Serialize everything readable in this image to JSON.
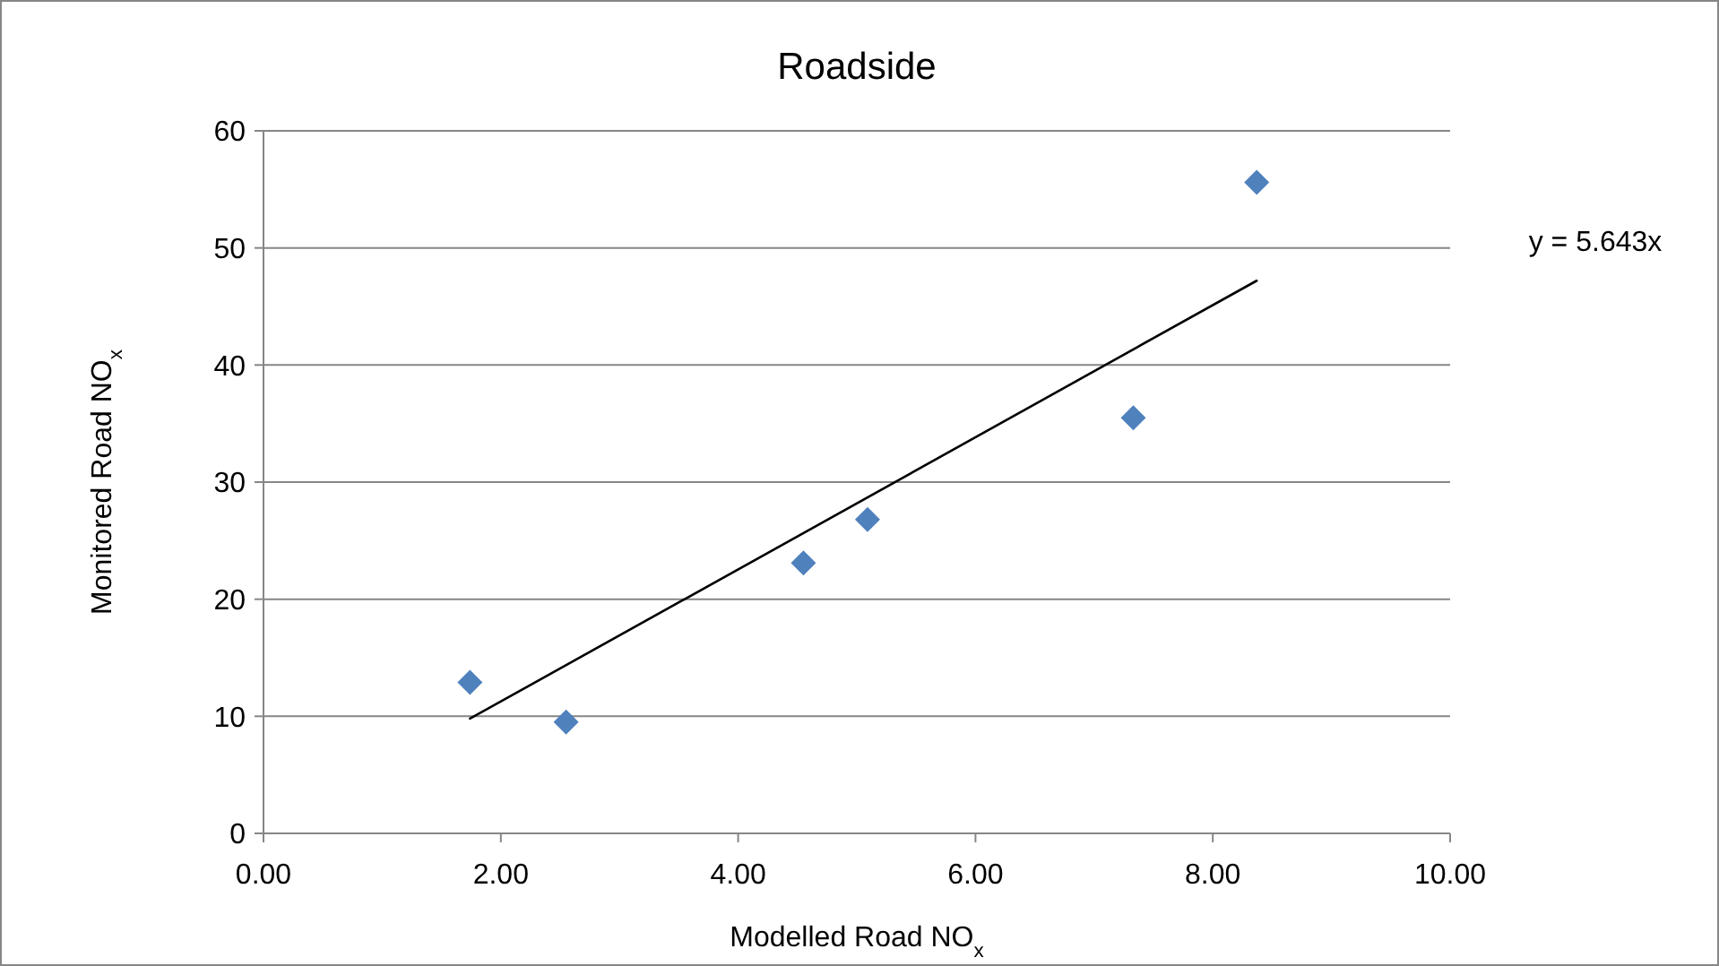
{
  "chart_data": {
    "type": "scatter",
    "title": "Roadside",
    "xlabel": "Modelled Road NO$_{x}$",
    "ylabel": "Monitored Road NO$_{x}$",
    "xlim": [
      0,
      10
    ],
    "xticks": [
      {
        "value": 0,
        "label": "0.00"
      },
      {
        "value": 2,
        "label": "2.00"
      },
      {
        "value": 4,
        "label": "4.00"
      },
      {
        "value": 6,
        "label": "6.00"
      },
      {
        "value": 8,
        "label": "8.00"
      },
      {
        "value": 10,
        "label": "10.00"
      }
    ],
    "ylim": [
      0,
      60
    ],
    "yticks": [
      0,
      10,
      20,
      30,
      40,
      50,
      60
    ],
    "grid": "y",
    "series": [
      {
        "type": "scatter",
        "color": "#4f81bd",
        "marker": "diamond",
        "x": [
          1.74,
          2.55,
          4.55,
          5.09,
          7.33,
          8.37
        ],
        "values": [
          12.9,
          9.5,
          23.1,
          26.8,
          35.5,
          55.6
        ]
      },
      {
        "type": "line",
        "color": "#000000",
        "marker": "none",
        "line_style": "solid",
        "x": [
          1.74,
          8.37
        ],
        "values": [
          9.8,
          47.2
        ]
      }
    ],
    "annotations": [
      "y = 5.643x"
    ]
  }
}
